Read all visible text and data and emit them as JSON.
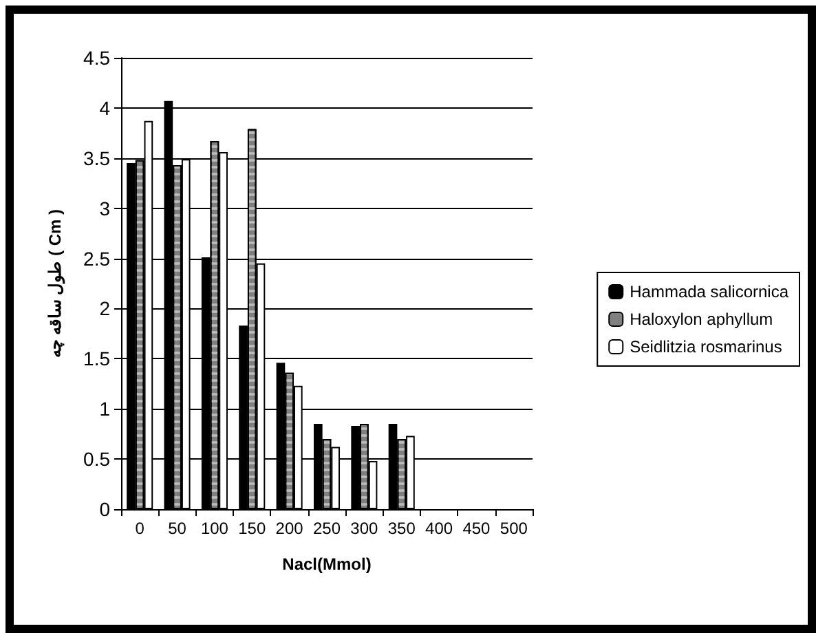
{
  "chart_data": {
    "type": "bar",
    "xlabel": "Nacl(Mmol)",
    "ylabel": "طول ساقه چه ( Cm )",
    "categories": [
      "0",
      "50",
      "100",
      "150",
      "200",
      "250",
      "300",
      "350",
      "400",
      "450",
      "500"
    ],
    "series": [
      {
        "name": "Hammada salicornica",
        "color": "#000000",
        "values": [
          3.45,
          4.07,
          2.51,
          1.83,
          1.46,
          0.85,
          0.83,
          0.85,
          null,
          null,
          null
        ]
      },
      {
        "name": "Haloxylon aphyllum",
        "color": "#808080",
        "values": [
          3.48,
          3.43,
          3.67,
          3.79,
          1.36,
          0.7,
          0.85,
          0.7,
          null,
          null,
          null
        ]
      },
      {
        "name": "Seidlitzia rosmarinus",
        "color": "#ffffff",
        "values": [
          3.87,
          3.49,
          3.56,
          2.45,
          1.23,
          0.62,
          0.48,
          0.73,
          null,
          null,
          null
        ]
      }
    ],
    "ylim": [
      0,
      4.5
    ],
    "yticks": [
      0,
      0.5,
      1,
      1.5,
      2,
      2.5,
      3,
      3.5,
      4,
      4.5
    ],
    "grid": "y",
    "legend": "right"
  }
}
